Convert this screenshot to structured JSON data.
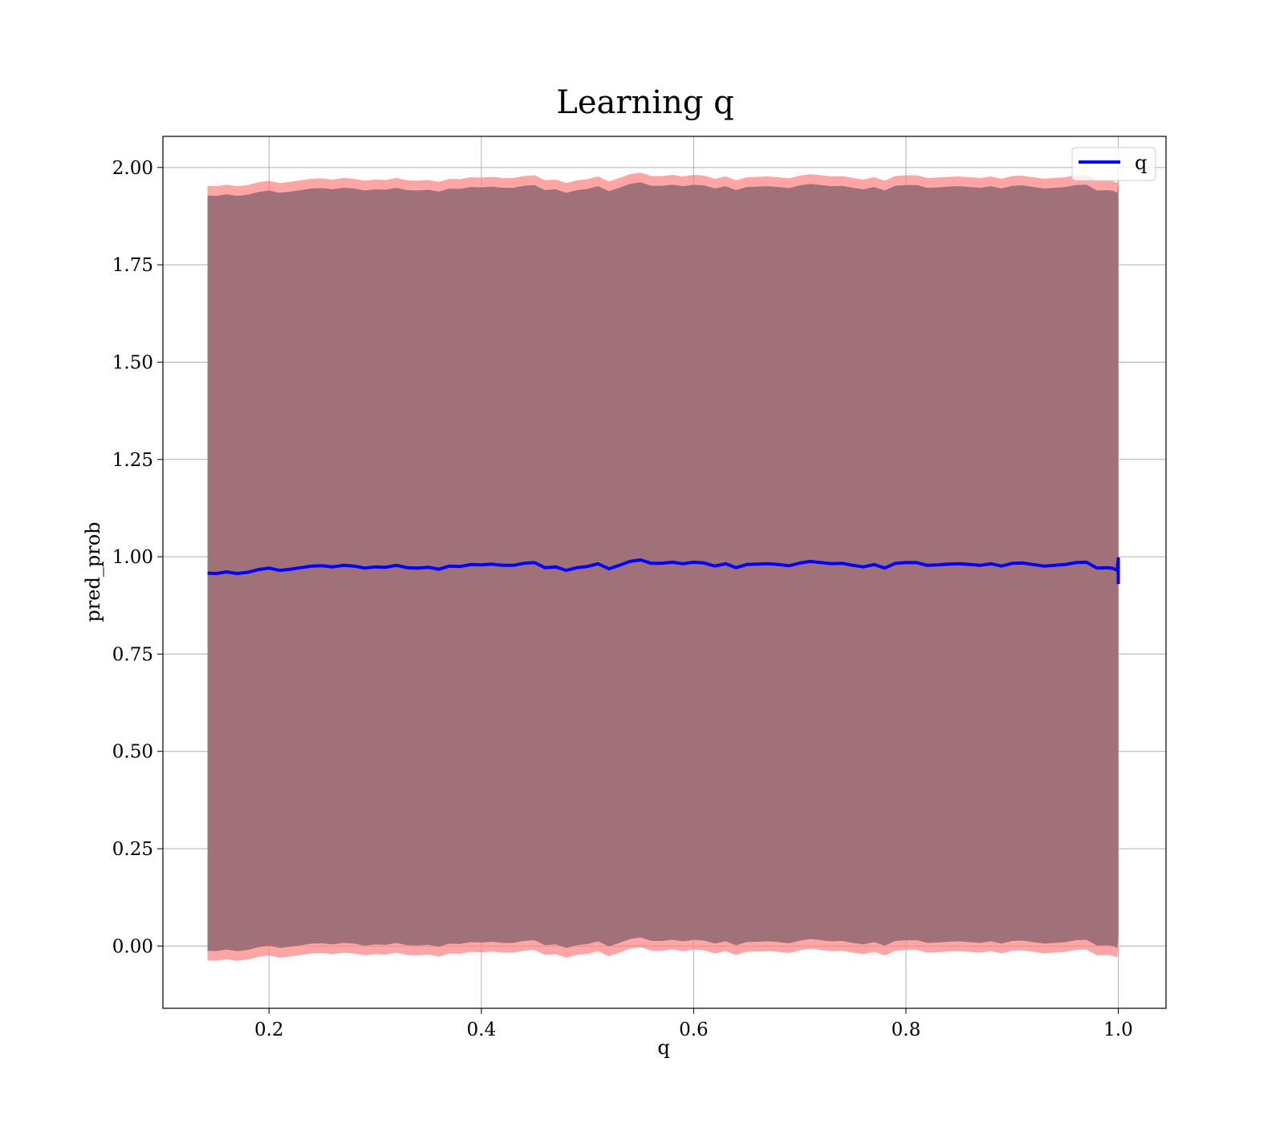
{
  "chart_data": {
    "type": "line",
    "title": "Learning q",
    "xlabel": "q",
    "ylabel": "pred_prob",
    "xlim": [
      0.1,
      1.045
    ],
    "ylim": [
      -0.16,
      2.08
    ],
    "xticks": [
      0.2,
      0.4,
      0.6,
      0.8,
      1.0
    ],
    "xtick_labels": [
      "0.2",
      "0.4",
      "0.6",
      "0.8",
      "1.0"
    ],
    "yticks": [
      0.0,
      0.25,
      0.5,
      0.75,
      1.0,
      1.25,
      1.5,
      1.75,
      2.0
    ],
    "ytick_labels": [
      "0.00",
      "0.25",
      "0.50",
      "0.75",
      "1.00",
      "1.25",
      "1.50",
      "1.75",
      "2.00"
    ],
    "grid": true,
    "legend_position": "top-right",
    "series": [
      {
        "name": "q",
        "color": "#0000ff",
        "x": [
          0.142,
          0.15,
          0.16,
          0.17,
          0.18,
          0.19,
          0.2,
          0.21,
          0.22,
          0.23,
          0.24,
          0.25,
          0.26,
          0.27,
          0.28,
          0.29,
          0.3,
          0.31,
          0.32,
          0.33,
          0.34,
          0.35,
          0.36,
          0.37,
          0.38,
          0.39,
          0.4,
          0.41,
          0.42,
          0.43,
          0.44,
          0.45,
          0.46,
          0.47,
          0.48,
          0.49,
          0.5,
          0.51,
          0.52,
          0.53,
          0.54,
          0.55,
          0.56,
          0.57,
          0.58,
          0.59,
          0.6,
          0.61,
          0.62,
          0.63,
          0.64,
          0.65,
          0.66,
          0.67,
          0.68,
          0.69,
          0.7,
          0.71,
          0.72,
          0.73,
          0.74,
          0.75,
          0.76,
          0.77,
          0.78,
          0.79,
          0.8,
          0.81,
          0.82,
          0.83,
          0.84,
          0.85,
          0.86,
          0.87,
          0.88,
          0.89,
          0.9,
          0.91,
          0.92,
          0.93,
          0.94,
          0.95,
          0.96,
          0.97,
          0.98,
          0.99,
          0.995,
          0.999,
          1.0,
          1.0
        ],
        "y": [
          0.958,
          0.957,
          0.961,
          0.957,
          0.96,
          0.967,
          0.971,
          0.965,
          0.968,
          0.972,
          0.976,
          0.977,
          0.974,
          0.978,
          0.976,
          0.971,
          0.974,
          0.973,
          0.978,
          0.972,
          0.971,
          0.973,
          0.968,
          0.976,
          0.975,
          0.98,
          0.979,
          0.981,
          0.978,
          0.978,
          0.983,
          0.985,
          0.972,
          0.974,
          0.965,
          0.972,
          0.975,
          0.982,
          0.969,
          0.978,
          0.988,
          0.992,
          0.983,
          0.983,
          0.986,
          0.982,
          0.986,
          0.984,
          0.976,
          0.982,
          0.972,
          0.98,
          0.981,
          0.982,
          0.98,
          0.977,
          0.984,
          0.988,
          0.985,
          0.982,
          0.983,
          0.978,
          0.974,
          0.98,
          0.971,
          0.983,
          0.985,
          0.985,
          0.978,
          0.979,
          0.981,
          0.982,
          0.98,
          0.978,
          0.982,
          0.976,
          0.983,
          0.984,
          0.98,
          0.976,
          0.978,
          0.98,
          0.985,
          0.986,
          0.971,
          0.972,
          0.97,
          0.965,
          0.995,
          0.93
        ]
      }
    ],
    "band": {
      "fill_color": "#a1717a",
      "edge_color": "#ff7f7f",
      "upper_offset": 0.97,
      "lower_offset": -0.97,
      "edge_width": 0.025
    }
  }
}
